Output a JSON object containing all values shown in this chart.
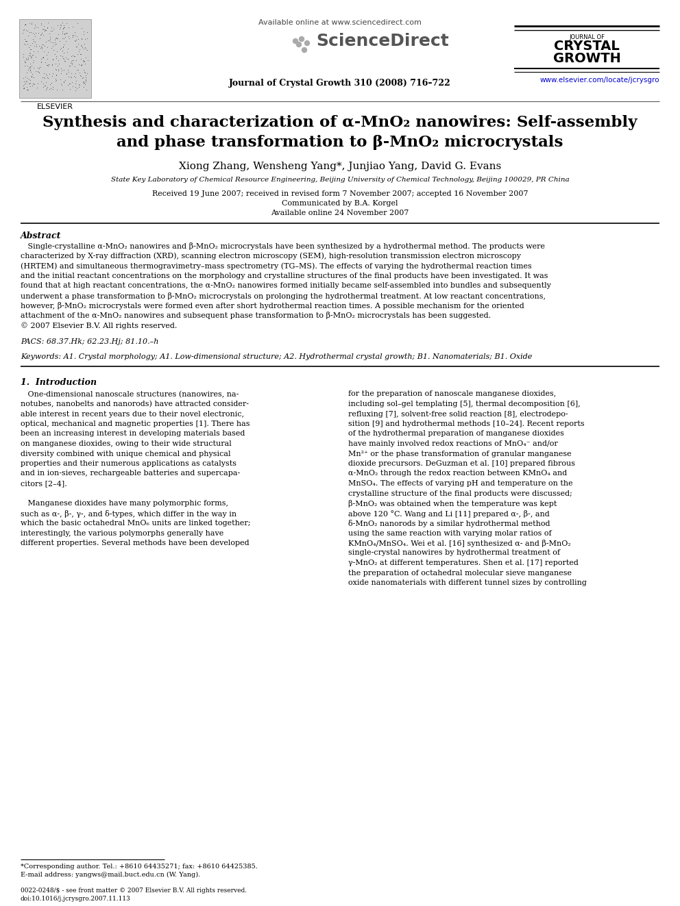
{
  "bg_color": "#ffffff",
  "available_online": "Available online at www.sciencedirect.com",
  "sciencedirect": "ScienceDirect",
  "journal_ref": "Journal of Crystal Growth 310 (2008) 716–722",
  "website_url": "www.elsevier.com/locate/jcrysgro",
  "elsevier_label": "ELSEVIER",
  "journal_of": "JOURNAL OF",
  "crystal": "CRYSTAL",
  "growth": "GROWTH",
  "title_line1": "Synthesis and characterization of α-MnO₂ nanowires: Self-assembly",
  "title_line2": "and phase transformation to β-MnO₂ microcrystals",
  "authors": "Xiong Zhang, Wensheng Yang*, Junjiao Yang, David G. Evans",
  "affiliation": "State Key Laboratory of Chemical Resource Engineering, Beijing University of Chemical Technology, Beijing 100029, PR China",
  "received": "Received 19 June 2007; received in revised form 7 November 2007; accepted 16 November 2007",
  "communicated": "Communicated by B.A. Korgel",
  "available_online2": "Available online 24 November 2007",
  "abstract_title": "Abstract",
  "abstract_lines": [
    "   Single-crystalline α-MnO₂ nanowires and β-MnO₂ microcrystals have been synthesized by a hydrothermal method. The products were",
    "characterized by X-ray diffraction (XRD), scanning electron microscopy (SEM), high-resolution transmission electron microscopy",
    "(HRTEM) and simultaneous thermogravimetry–mass spectrometry (TG–MS). The effects of varying the hydrothermal reaction times",
    "and the initial reactant concentrations on the morphology and crystalline structures of the final products have been investigated. It was",
    "found that at high reactant concentrations, the α-MnO₂ nanowires formed initially became self-assembled into bundles and subsequently",
    "underwent a phase transformation to β-MnO₂ microcrystals on prolonging the hydrothermal treatment. At low reactant concentrations,",
    "however, β-MnO₂ microcrystals were formed even after short hydrothermal reaction times. A possible mechanism for the oriented",
    "attachment of the α-MnO₂ nanowires and subsequent phase transformation to β-MnO₂ microcrystals has been suggested.",
    "© 2007 Elsevier B.V. All rights reserved."
  ],
  "pacs": "PACS: 68.37.Hk; 62.23.Hj; 81.10.–h",
  "keywords": "Keywords: A1. Crystal morphology; A1. Low-dimensional structure; A2. Hydrothermal crystal growth; B1. Nanomaterials; B1. Oxide",
  "section1_title": "1.  Introduction",
  "col1_lines": [
    "   One-dimensional nanoscale structures (nanowires, na-",
    "notubes, nanobelts and nanorods) have attracted consider-",
    "able interest in recent years due to their novel electronic,",
    "optical, mechanical and magnetic properties [1]. There has",
    "been an increasing interest in developing materials based",
    "on manganese dioxides, owing to their wide structural",
    "diversity combined with unique chemical and physical",
    "properties and their numerous applications as catalysts",
    "and in ion-sieves, rechargeable batteries and supercapa-",
    "citors [2–4].",
    "",
    "   Manganese dioxides have many polymorphic forms,",
    "such as α-, β-, γ-, and δ-types, which differ in the way in",
    "which the basic octahedral MnO₆ units are linked together;",
    "interestingly, the various polymorphs generally have",
    "different properties. Several methods have been developed"
  ],
  "col2_lines": [
    "for the preparation of nanoscale manganese dioxides,",
    "including sol–gel templating [5], thermal decomposition [6],",
    "refluxing [7], solvent-free solid reaction [8], electrodepo-",
    "sition [9] and hydrothermal methods [10–24]. Recent reports",
    "of the hydrothermal preparation of manganese dioxides",
    "have mainly involved redox reactions of MnO₄⁻ and/or",
    "Mn²⁺ or the phase transformation of granular manganese",
    "dioxide precursors. DeGuzman et al. [10] prepared fibrous",
    "α-MnO₂ through the redox reaction between KMnO₄ and",
    "MnSO₄. The effects of varying pH and temperature on the",
    "crystalline structure of the final products were discussed;",
    "β-MnO₂ was obtained when the temperature was kept",
    "above 120 °C. Wang and Li [11] prepared α-, β-, and",
    "δ-MnO₂ nanorods by a similar hydrothermal method",
    "using the same reaction with varying molar ratios of",
    "KMnO₄/MnSO₄. Wei et al. [16] synthesized α- and β-MnO₂",
    "single-crystal nanowires by hydrothermal treatment of",
    "γ-MnO₂ at different temperatures. Shen et al. [17] reported",
    "the preparation of octahedral molecular sieve manganese",
    "oxide nanomaterials with different tunnel sizes by controlling"
  ],
  "footnote_line": "*Corresponding author. Tel.: +8610 64435271; fax: +8610 64425385.",
  "email_line": "E-mail address: yangws@mail.buct.edu.cn (W. Yang).",
  "copyright_line": "0022-0248/$ - see front matter © 2007 Elsevier B.V. All rights reserved.",
  "doi_line": "doi:10.1016/j.jcrysgro.2007.11.113"
}
